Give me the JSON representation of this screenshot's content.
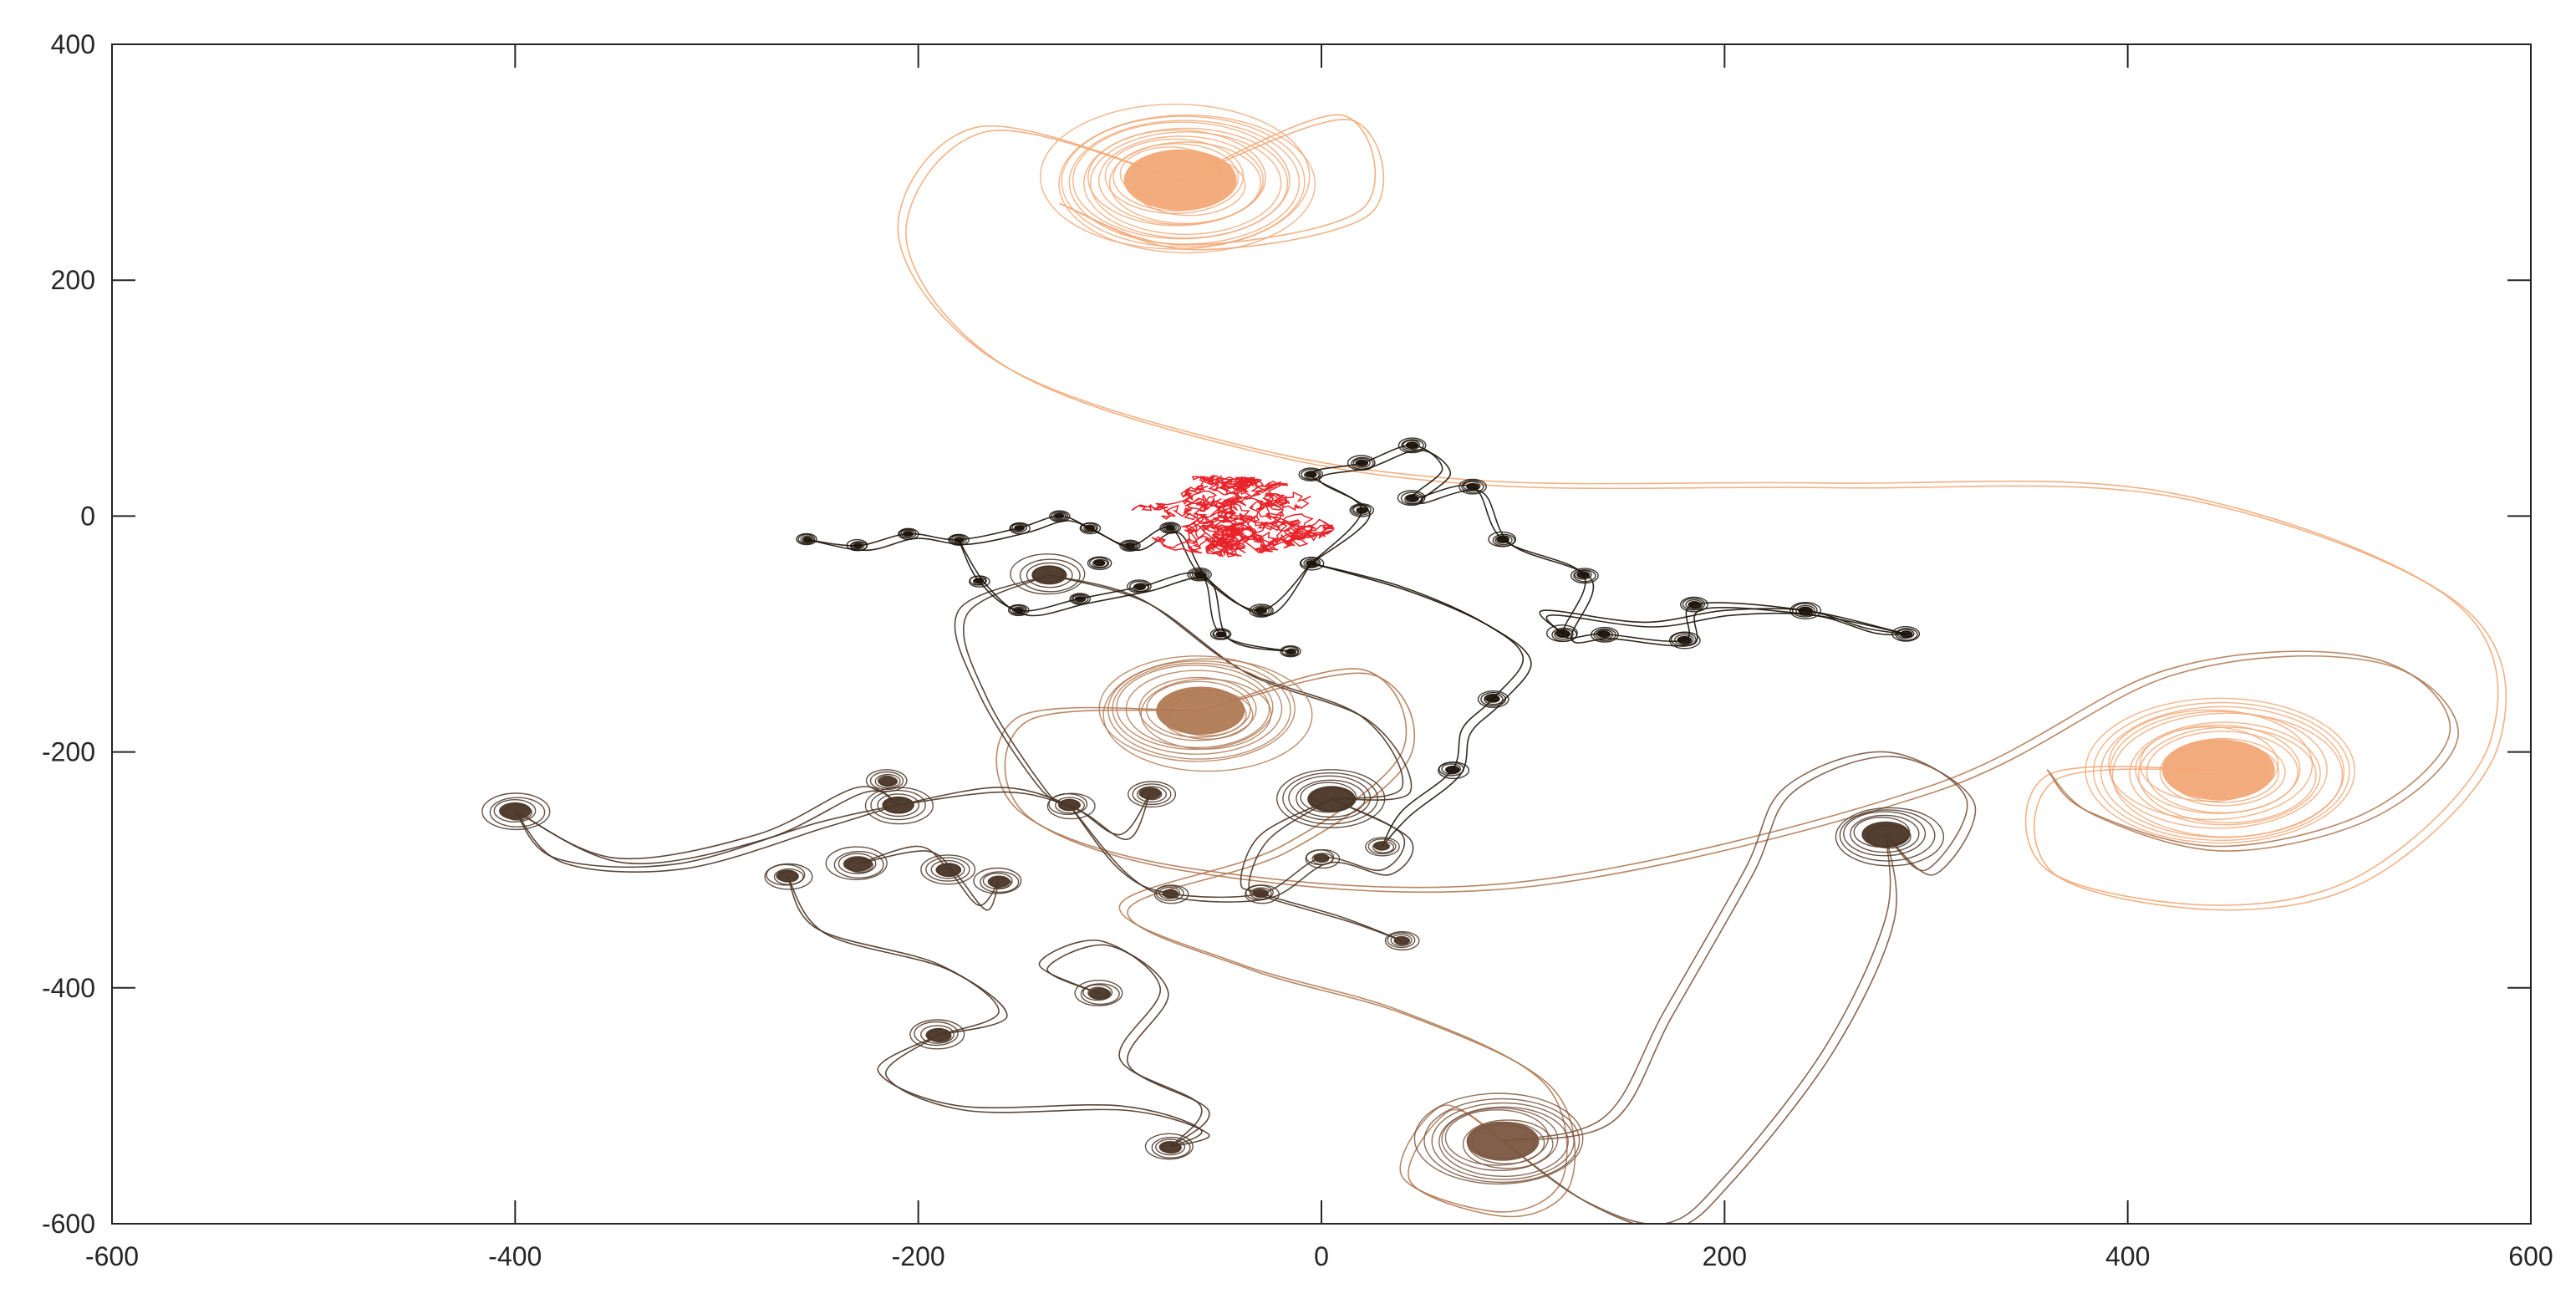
{
  "chart_data": {
    "type": "line",
    "title": "",
    "xlabel": "",
    "ylabel": "",
    "xlim": [
      -600,
      600
    ],
    "ylim": [
      -600,
      400
    ],
    "grid": false,
    "legend": "none",
    "x_ticks": [
      "-600",
      "-400",
      "-200",
      "0",
      "200",
      "400",
      "600"
    ],
    "y_ticks": [
      "400",
      "200",
      "0",
      "-200",
      "-400",
      "-600"
    ],
    "colors": {
      "axis": "#262626",
      "random_walk": "#e8232a",
      "small_vortices": "#1a1208",
      "dark_brown": "#4a3526",
      "mid_brown": "#7a5640",
      "tan": "#b07a54",
      "light_orange": "#f2a877"
    },
    "random_walk_center": [
      -55,
      0
    ],
    "vortices": [
      {
        "x": -70,
        "y": 285,
        "r": 70,
        "color": "light_orange"
      },
      {
        "x": 445,
        "y": -215,
        "r": 70,
        "color": "light_orange"
      },
      {
        "x": -60,
        "y": -165,
        "r": 55,
        "color": "tan"
      },
      {
        "x": 90,
        "y": -530,
        "r": 45,
        "color": "mid_brown"
      },
      {
        "x": 280,
        "y": -270,
        "r": 30,
        "color": "dark_brown"
      },
      {
        "x": 5,
        "y": -240,
        "r": 30,
        "color": "dark_brown"
      },
      {
        "x": -135,
        "y": -50,
        "r": 22,
        "color": "dark_brown"
      },
      {
        "x": -400,
        "y": -250,
        "r": 20,
        "color": "dark_brown"
      },
      {
        "x": -210,
        "y": -245,
        "r": 20,
        "color": "dark_brown"
      },
      {
        "x": -230,
        "y": -295,
        "r": 18,
        "color": "dark_brown"
      },
      {
        "x": -185,
        "y": -300,
        "r": 16,
        "color": "dark_brown"
      },
      {
        "x": -265,
        "y": -305,
        "r": 14,
        "color": "dark_brown"
      },
      {
        "x": -215,
        "y": -225,
        "r": 12,
        "color": "dark_brown"
      },
      {
        "x": -160,
        "y": -310,
        "r": 14,
        "color": "dark_brown"
      },
      {
        "x": -125,
        "y": -245,
        "r": 14,
        "color": "dark_brown"
      },
      {
        "x": -85,
        "y": -235,
        "r": 14,
        "color": "dark_brown"
      },
      {
        "x": -190,
        "y": -440,
        "r": 16,
        "color": "dark_brown"
      },
      {
        "x": -110,
        "y": -405,
        "r": 14,
        "color": "dark_brown"
      },
      {
        "x": -75,
        "y": -535,
        "r": 14,
        "color": "dark_brown"
      },
      {
        "x": -75,
        "y": -320,
        "r": 10,
        "color": "dark_brown"
      },
      {
        "x": -30,
        "y": -320,
        "r": 10,
        "color": "dark_brown"
      },
      {
        "x": 0,
        "y": -290,
        "r": 10,
        "color": "dark_brown"
      },
      {
        "x": 30,
        "y": -280,
        "r": 10,
        "color": "dark_brown"
      },
      {
        "x": 40,
        "y": -360,
        "r": 10,
        "color": "dark_brown"
      },
      {
        "x": 85,
        "y": -155,
        "r": 9,
        "color": "small_vortices"
      },
      {
        "x": 65,
        "y": -215,
        "r": 9,
        "color": "small_vortices"
      },
      {
        "x": 120,
        "y": -100,
        "r": 9,
        "color": "small_vortices"
      },
      {
        "x": 140,
        "y": -100,
        "r": 8,
        "color": "small_vortices"
      },
      {
        "x": 180,
        "y": -105,
        "r": 9,
        "color": "small_vortices"
      },
      {
        "x": 185,
        "y": -75,
        "r": 8,
        "color": "small_vortices"
      },
      {
        "x": 240,
        "y": -80,
        "r": 9,
        "color": "small_vortices"
      },
      {
        "x": 290,
        "y": -100,
        "r": 8,
        "color": "small_vortices"
      },
      {
        "x": 130,
        "y": -50,
        "r": 8,
        "color": "small_vortices"
      },
      {
        "x": 90,
        "y": -20,
        "r": 8,
        "color": "small_vortices"
      },
      {
        "x": 75,
        "y": 25,
        "r": 8,
        "color": "small_vortices"
      },
      {
        "x": 45,
        "y": 15,
        "r": 8,
        "color": "small_vortices"
      },
      {
        "x": 45,
        "y": 60,
        "r": 8,
        "color": "small_vortices"
      },
      {
        "x": 20,
        "y": 45,
        "r": 8,
        "color": "small_vortices"
      },
      {
        "x": 20,
        "y": 5,
        "r": 7,
        "color": "small_vortices"
      },
      {
        "x": -5,
        "y": 35,
        "r": 7,
        "color": "small_vortices"
      },
      {
        "x": -5,
        "y": -40,
        "r": 7,
        "color": "small_vortices"
      },
      {
        "x": -30,
        "y": -80,
        "r": 7,
        "color": "small_vortices"
      },
      {
        "x": -50,
        "y": -100,
        "r": 6,
        "color": "small_vortices"
      },
      {
        "x": -15,
        "y": -115,
        "r": 6,
        "color": "small_vortices"
      },
      {
        "x": -60,
        "y": -50,
        "r": 7,
        "color": "small_vortices"
      },
      {
        "x": -90,
        "y": -60,
        "r": 7,
        "color": "small_vortices"
      },
      {
        "x": -110,
        "y": -40,
        "r": 7,
        "color": "small_vortices"
      },
      {
        "x": -120,
        "y": -70,
        "r": 6,
        "color": "small_vortices"
      },
      {
        "x": -150,
        "y": -80,
        "r": 6,
        "color": "small_vortices"
      },
      {
        "x": -170,
        "y": -55,
        "r": 6,
        "color": "small_vortices"
      },
      {
        "x": -180,
        "y": -20,
        "r": 6,
        "color": "small_vortices"
      },
      {
        "x": -205,
        "y": -15,
        "r": 6,
        "color": "small_vortices"
      },
      {
        "x": -230,
        "y": -25,
        "r": 6,
        "color": "small_vortices"
      },
      {
        "x": -255,
        "y": -20,
        "r": 6,
        "color": "small_vortices"
      },
      {
        "x": -150,
        "y": -10,
        "r": 6,
        "color": "small_vortices"
      },
      {
        "x": -115,
        "y": -10,
        "r": 6,
        "color": "small_vortices"
      },
      {
        "x": -95,
        "y": -25,
        "r": 6,
        "color": "small_vortices"
      },
      {
        "x": -75,
        "y": -10,
        "r": 6,
        "color": "small_vortices"
      },
      {
        "x": -130,
        "y": 0,
        "r": 6,
        "color": "small_vortices"
      }
    ],
    "paths": [
      {
        "color": "light_orange",
        "points": [
          [
            -70,
            285
          ],
          [
            -170,
            330
          ],
          [
            -210,
            240
          ],
          [
            -160,
            130
          ],
          [
            -40,
            60
          ],
          [
            80,
            30
          ],
          [
            250,
            28
          ],
          [
            420,
            20
          ],
          [
            560,
            -70
          ],
          [
            580,
            -190
          ],
          [
            520,
            -300
          ],
          [
            445,
            -330
          ],
          [
            360,
            -300
          ],
          [
            360,
            -220
          ],
          [
            445,
            -215
          ]
        ]
      },
      {
        "color": "light_orange",
        "points": [
          [
            -70,
            285
          ],
          [
            10,
            340
          ],
          [
            20,
            260
          ],
          [
            -70,
            230
          ],
          [
            -130,
            265
          ]
        ]
      },
      {
        "color": "tan",
        "points": [
          [
            -60,
            -165
          ],
          [
            -150,
            -170
          ],
          [
            -150,
            -250
          ],
          [
            -60,
            -300
          ],
          [
            100,
            -310
          ],
          [
            300,
            -230
          ],
          [
            420,
            -130
          ],
          [
            520,
            -120
          ],
          [
            560,
            -180
          ],
          [
            520,
            -250
          ],
          [
            445,
            -280
          ],
          [
            380,
            -250
          ],
          [
            360,
            -215
          ]
        ]
      },
      {
        "color": "tan",
        "points": [
          [
            -60,
            -165
          ],
          [
            20,
            -130
          ],
          [
            40,
            -200
          ],
          [
            -20,
            -280
          ],
          [
            -100,
            -330
          ],
          [
            -40,
            -380
          ],
          [
            40,
            -420
          ],
          [
            110,
            -480
          ],
          [
            120,
            -560
          ],
          [
            90,
            -590
          ],
          [
            40,
            -560
          ],
          [
            60,
            -500
          ],
          [
            90,
            -530
          ]
        ]
      },
      {
        "color": "mid_brown",
        "points": [
          [
            90,
            -530
          ],
          [
            140,
            -510
          ],
          [
            170,
            -420
          ],
          [
            210,
            -300
          ],
          [
            230,
            -230
          ],
          [
            280,
            -200
          ],
          [
            320,
            -240
          ],
          [
            300,
            -300
          ],
          [
            280,
            -270
          ]
        ]
      },
      {
        "color": "mid_brown",
        "points": [
          [
            90,
            -530
          ],
          [
            130,
            -580
          ],
          [
            170,
            -600
          ],
          [
            200,
            -560
          ],
          [
            250,
            -450
          ],
          [
            280,
            -340
          ],
          [
            280,
            -270
          ]
        ]
      },
      {
        "color": "dark_brown",
        "points": [
          [
            -400,
            -250
          ],
          [
            -350,
            -290
          ],
          [
            -280,
            -270
          ],
          [
            -230,
            -230
          ],
          [
            -210,
            -245
          ]
        ]
      },
      {
        "color": "dark_brown",
        "points": [
          [
            -400,
            -250
          ],
          [
            -380,
            -290
          ],
          [
            -320,
            -295
          ],
          [
            -250,
            -260
          ],
          [
            -210,
            -245
          ]
        ]
      },
      {
        "color": "dark_brown",
        "points": [
          [
            -210,
            -245
          ],
          [
            -160,
            -230
          ],
          [
            -125,
            -245
          ],
          [
            -100,
            -270
          ],
          [
            -85,
            -235
          ]
        ]
      },
      {
        "color": "dark_brown",
        "points": [
          [
            -230,
            -295
          ],
          [
            -200,
            -280
          ],
          [
            -185,
            -300
          ],
          [
            -170,
            -330
          ],
          [
            -160,
            -310
          ]
        ]
      },
      {
        "color": "dark_brown",
        "points": [
          [
            -265,
            -305
          ],
          [
            -250,
            -350
          ],
          [
            -190,
            -380
          ],
          [
            -160,
            -420
          ],
          [
            -190,
            -440
          ]
        ]
      },
      {
        "color": "dark_brown",
        "points": [
          [
            -190,
            -440
          ],
          [
            -220,
            -470
          ],
          [
            -180,
            -500
          ],
          [
            -100,
            -500
          ],
          [
            -60,
            -520
          ],
          [
            -75,
            -535
          ]
        ]
      },
      {
        "color": "dark_brown",
        "points": [
          [
            -110,
            -405
          ],
          [
            -140,
            -380
          ],
          [
            -110,
            -360
          ],
          [
            -80,
            -400
          ],
          [
            -100,
            -460
          ],
          [
            -60,
            -500
          ],
          [
            -75,
            -535
          ]
        ]
      },
      {
        "color": "dark_brown",
        "points": [
          [
            -135,
            -50
          ],
          [
            -180,
            -80
          ],
          [
            -170,
            -150
          ],
          [
            -140,
            -230
          ],
          [
            -125,
            -245
          ]
        ]
      },
      {
        "color": "dark_brown",
        "points": [
          [
            -135,
            -50
          ],
          [
            -90,
            -70
          ],
          [
            -40,
            -130
          ],
          [
            20,
            -170
          ],
          [
            40,
            -230
          ],
          [
            5,
            -240
          ]
        ]
      },
      {
        "color": "dark_brown",
        "points": [
          [
            5,
            -240
          ],
          [
            40,
            -270
          ],
          [
            30,
            -300
          ],
          [
            0,
            -290
          ],
          [
            -30,
            -320
          ],
          [
            -75,
            -320
          ],
          [
            -100,
            -300
          ],
          [
            -125,
            -245
          ]
        ]
      },
      {
        "color": "dark_brown",
        "points": [
          [
            5,
            -240
          ],
          [
            -30,
            -270
          ],
          [
            -40,
            -310
          ],
          [
            -30,
            -320
          ],
          [
            10,
            -340
          ],
          [
            40,
            -360
          ]
        ]
      },
      {
        "color": "small_vortices",
        "points": [
          [
            -255,
            -20
          ],
          [
            -230,
            -25
          ],
          [
            -205,
            -15
          ],
          [
            -180,
            -20
          ],
          [
            -150,
            -10
          ],
          [
            -130,
            0
          ],
          [
            -115,
            -10
          ],
          [
            -95,
            -25
          ],
          [
            -75,
            -10
          ],
          [
            -60,
            -50
          ],
          [
            -30,
            -80
          ],
          [
            -5,
            -40
          ]
        ]
      },
      {
        "color": "small_vortices",
        "points": [
          [
            -180,
            -20
          ],
          [
            -170,
            -55
          ],
          [
            -150,
            -80
          ],
          [
            -120,
            -70
          ],
          [
            -90,
            -60
          ],
          [
            -60,
            -50
          ],
          [
            -50,
            -100
          ],
          [
            -15,
            -115
          ]
        ]
      },
      {
        "color": "small_vortices",
        "points": [
          [
            -5,
            -40
          ],
          [
            20,
            5
          ],
          [
            -5,
            35
          ],
          [
            20,
            45
          ],
          [
            45,
            60
          ],
          [
            60,
            40
          ],
          [
            45,
            15
          ],
          [
            75,
            25
          ],
          [
            90,
            -20
          ],
          [
            130,
            -50
          ],
          [
            120,
            -100
          ],
          [
            140,
            -100
          ],
          [
            180,
            -105
          ],
          [
            185,
            -75
          ],
          [
            240,
            -80
          ],
          [
            290,
            -100
          ]
        ]
      },
      {
        "color": "small_vortices",
        "points": [
          [
            -5,
            -40
          ],
          [
            40,
            -60
          ],
          [
            80,
            -90
          ],
          [
            100,
            -120
          ],
          [
            85,
            -155
          ],
          [
            70,
            -180
          ],
          [
            65,
            -215
          ],
          [
            40,
            -250
          ],
          [
            30,
            -280
          ]
        ]
      },
      {
        "color": "small_vortices",
        "points": [
          [
            120,
            -100
          ],
          [
            110,
            -80
          ],
          [
            160,
            -90
          ],
          [
            200,
            -80
          ],
          [
            240,
            -80
          ],
          [
            270,
            -95
          ],
          [
            290,
            -100
          ]
        ]
      }
    ]
  }
}
